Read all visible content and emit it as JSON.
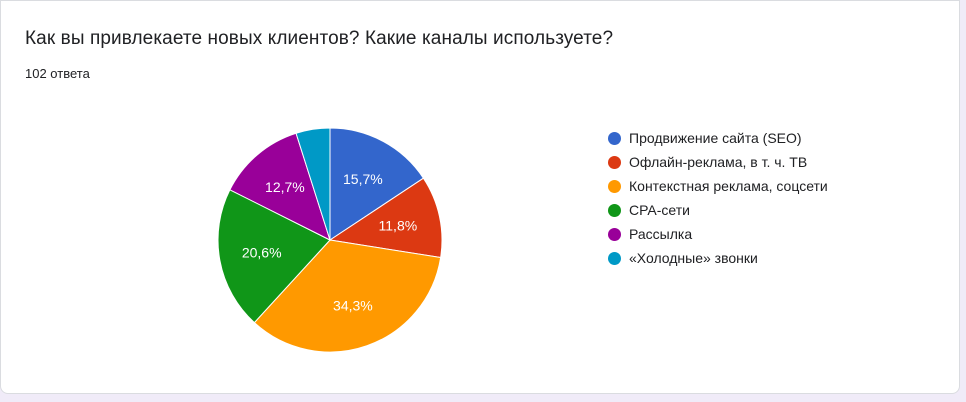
{
  "question": {
    "title": "Как вы привлекаете новых клиентов? Какие каналы используете?",
    "responses": "102 ответа"
  },
  "chart_data": {
    "type": "pie",
    "start_angle_deg": 90,
    "direction": "clockwise",
    "slices": [
      {
        "label": "Продвижение сайта (SEO)",
        "value": 15.7,
        "value_label": "15,7%",
        "color": "#3366cc"
      },
      {
        "label": "Офлайн-реклама, в т. ч. ТВ",
        "value": 11.8,
        "value_label": "11,8%",
        "color": "#dc3912"
      },
      {
        "label": "Контекстная реклама, соцсети",
        "value": 34.3,
        "value_label": "34,3%",
        "color": "#ff9900"
      },
      {
        "label": "CPA-сети",
        "value": 20.6,
        "value_label": "20,6%",
        "color": "#109618"
      },
      {
        "label": "Рассылка",
        "value": 12.7,
        "value_label": "12,7%",
        "color": "#990099"
      },
      {
        "label": "«Холодные» звонки",
        "value": 4.9,
        "value_label": "",
        "color": "#0099c6"
      }
    ],
    "legend_position": "right"
  }
}
